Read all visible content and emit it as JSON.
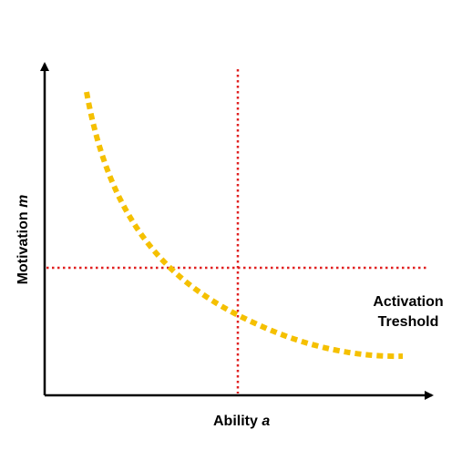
{
  "diagram": {
    "x_axis": {
      "name": "Ability",
      "variable": "a"
    },
    "y_axis": {
      "name": "Motivation",
      "variable": "m"
    },
    "annotation": {
      "line1": "Activation",
      "line2": "Treshold"
    },
    "colors": {
      "axes": "#000000",
      "threshold_lines": "#e02020",
      "curve": "#f5c000"
    }
  }
}
